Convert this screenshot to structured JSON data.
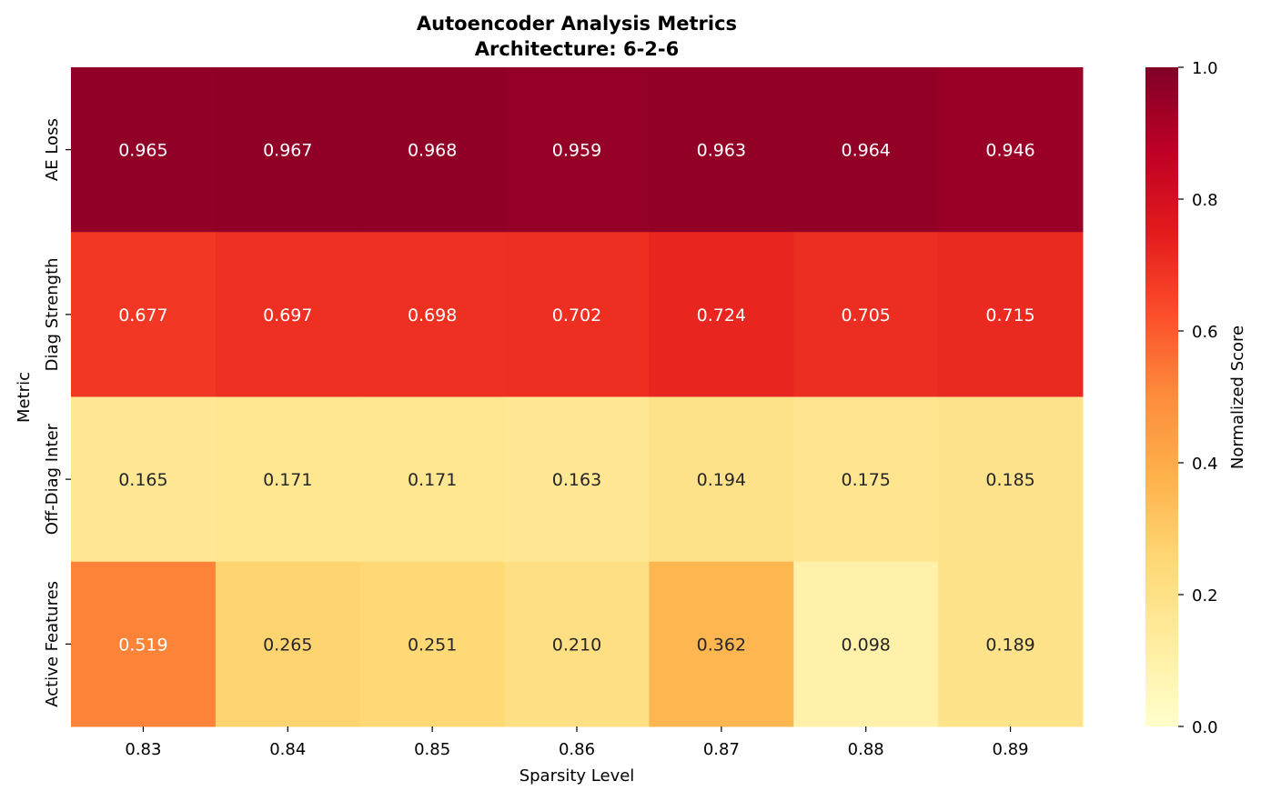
{
  "chart_data": {
    "type": "heatmap",
    "title_line1": "Autoencoder Analysis Metrics",
    "title_line2": "Architecture: 6-2-6",
    "xlabel": "Sparsity Level",
    "ylabel": "Metric",
    "x_categories": [
      "0.83",
      "0.84",
      "0.85",
      "0.86",
      "0.87",
      "0.88",
      "0.89"
    ],
    "y_categories": [
      "AE Loss",
      "Diag Strength",
      "Off-Diag Inter",
      "Active Features"
    ],
    "values": [
      [
        0.965,
        0.967,
        0.968,
        0.959,
        0.963,
        0.964,
        0.946
      ],
      [
        0.677,
        0.697,
        0.698,
        0.702,
        0.724,
        0.705,
        0.715
      ],
      [
        0.165,
        0.171,
        0.171,
        0.163,
        0.194,
        0.175,
        0.185
      ],
      [
        0.519,
        0.265,
        0.251,
        0.21,
        0.362,
        0.098,
        0.189
      ]
    ],
    "value_format": "3 decimals",
    "colormap": "YlOrRd",
    "colorbar": {
      "label": "Normalized Score",
      "range": [
        0,
        1
      ],
      "ticks": [
        "0.0",
        "0.2",
        "0.4",
        "0.6",
        "0.8",
        "1.0"
      ]
    }
  }
}
